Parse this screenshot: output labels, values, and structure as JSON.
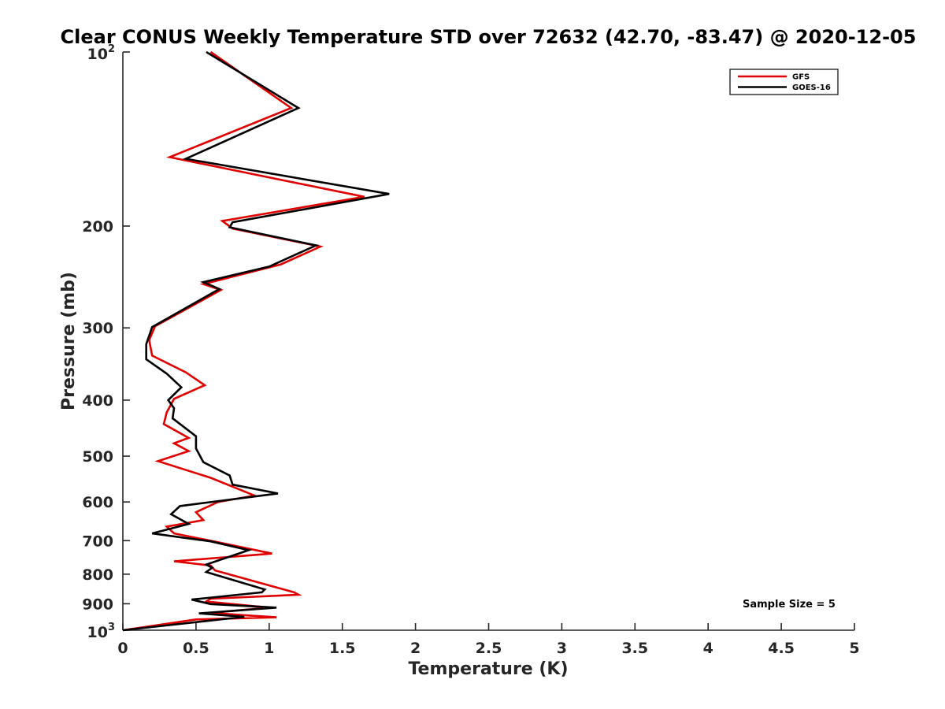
{
  "chart_data": {
    "type": "line",
    "title": "Clear CONUS Weekly Temperature STD over 72632 (42.70, -83.47) @ 2020-12-05",
    "xlabel": "Temperature (K)",
    "ylabel": "Pressure (mb)",
    "xlim": [
      0,
      5
    ],
    "ylim": [
      100,
      1000
    ],
    "y_scale": "log",
    "y_reversed": true,
    "xticks": [
      0,
      0.5,
      1,
      1.5,
      2,
      2.5,
      3,
      3.5,
      4,
      4.5,
      5
    ],
    "xtick_labels": [
      "0",
      "0.5",
      "1",
      "1.5",
      "2",
      "2.5",
      "3",
      "3.5",
      "4",
      "4.5",
      "5"
    ],
    "yticks": [
      {
        "value": 100,
        "base": "10",
        "exp": "2"
      },
      {
        "value": 200,
        "label": "200"
      },
      {
        "value": 300,
        "label": "300"
      },
      {
        "value": 400,
        "label": "400"
      },
      {
        "value": 500,
        "label": "500"
      },
      {
        "value": 600,
        "label": "600"
      },
      {
        "value": 700,
        "label": "700"
      },
      {
        "value": 800,
        "label": "800"
      },
      {
        "value": 900,
        "label": "900"
      },
      {
        "value": 1000,
        "base": "10",
        "exp": "3"
      }
    ],
    "grid": false,
    "legend_position": "top-right",
    "annotation": "Sample Size = 5",
    "series": [
      {
        "name": "GFS",
        "color": "#e00000",
        "points": [
          [
            0.6,
            100
          ],
          [
            1.15,
            125
          ],
          [
            0.32,
            152
          ],
          [
            1.65,
            178
          ],
          [
            0.68,
            196
          ],
          [
            0.75,
            202
          ],
          [
            1.35,
            217
          ],
          [
            1.08,
            233
          ],
          [
            0.55,
            252
          ],
          [
            0.67,
            258
          ],
          [
            0.22,
            298
          ],
          [
            0.18,
            315
          ],
          [
            0.2,
            335
          ],
          [
            0.43,
            358
          ],
          [
            0.56,
            377
          ],
          [
            0.35,
            398
          ],
          [
            0.3,
            420
          ],
          [
            0.28,
            440
          ],
          [
            0.45,
            465
          ],
          [
            0.35,
            475
          ],
          [
            0.45,
            490
          ],
          [
            0.24,
            510
          ],
          [
            0.6,
            545
          ],
          [
            0.9,
            585
          ],
          [
            0.65,
            600
          ],
          [
            0.5,
            625
          ],
          [
            0.55,
            645
          ],
          [
            0.3,
            662
          ],
          [
            0.35,
            680
          ],
          [
            0.62,
            702
          ],
          [
            1.02,
            737
          ],
          [
            0.35,
            760
          ],
          [
            0.6,
            773
          ],
          [
            0.63,
            788
          ],
          [
            1.17,
            860
          ],
          [
            1.2,
            868
          ],
          [
            0.6,
            882
          ],
          [
            0.57,
            892
          ],
          [
            1.0,
            914
          ],
          [
            0.6,
            933
          ],
          [
            0.86,
            943
          ],
          [
            1.05,
            950
          ],
          [
            0.5,
            958
          ],
          [
            0.0,
            1000
          ]
        ]
      },
      {
        "name": "GOES-16",
        "color": "#000000",
        "points": [
          [
            0.57,
            100
          ],
          [
            1.2,
            125
          ],
          [
            0.43,
            153
          ],
          [
            1.82,
            176
          ],
          [
            0.75,
            197
          ],
          [
            0.73,
            201
          ],
          [
            1.32,
            216
          ],
          [
            1.0,
            235
          ],
          [
            0.55,
            250
          ],
          [
            0.66,
            257
          ],
          [
            0.2,
            299
          ],
          [
            0.16,
            320
          ],
          [
            0.16,
            340
          ],
          [
            0.3,
            360
          ],
          [
            0.4,
            380
          ],
          [
            0.31,
            400
          ],
          [
            0.35,
            413
          ],
          [
            0.34,
            430
          ],
          [
            0.5,
            462
          ],
          [
            0.5,
            485
          ],
          [
            0.55,
            512
          ],
          [
            0.73,
            540
          ],
          [
            0.75,
            560
          ],
          [
            1.06,
            580
          ],
          [
            0.39,
            610
          ],
          [
            0.33,
            630
          ],
          [
            0.45,
            655
          ],
          [
            0.2,
            680
          ],
          [
            0.6,
            702
          ],
          [
            0.86,
            727
          ],
          [
            0.57,
            770
          ],
          [
            0.61,
            780
          ],
          [
            0.57,
            793
          ],
          [
            0.97,
            850
          ],
          [
            0.95,
            860
          ],
          [
            0.47,
            885
          ],
          [
            0.6,
            901
          ],
          [
            1.05,
            914
          ],
          [
            0.52,
            935
          ],
          [
            0.83,
            948
          ],
          [
            0.0,
            1000
          ]
        ]
      }
    ]
  }
}
